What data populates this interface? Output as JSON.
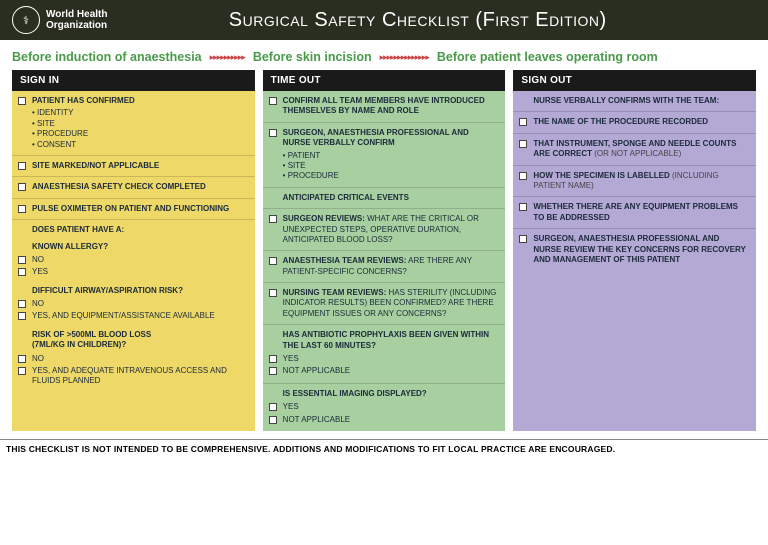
{
  "header": {
    "org_line1": "World Health",
    "org_line2": "Organization",
    "title": "Surgical Safety Checklist (First Edition)"
  },
  "phases": {
    "p1": "Before induction of anaesthesia",
    "p2": "Before skin incision",
    "p3": "Before patient leaves operating room",
    "arrows1": "▸▸▸▸▸▸▸▸▸▸",
    "arrows2": "▸▸▸▸▸▸▸▸▸▸▸▸▸▸"
  },
  "col1": {
    "header": "SIGN IN",
    "i1": {
      "title": "PATIENT HAS CONFIRMED",
      "b1": "IDENTITY",
      "b2": "SITE",
      "b3": "PROCEDURE",
      "b4": "CONSENT"
    },
    "i2": "SITE MARKED/NOT APPLICABLE",
    "i3": "ANAESTHESIA SAFETY CHECK COMPLETED",
    "i4": "PULSE OXIMETER ON PATIENT AND FUNCTIONING",
    "q_header": "DOES PATIENT HAVE A:",
    "q1": {
      "title": "KNOWN ALLERGY?",
      "o1": "NO",
      "o2": "YES"
    },
    "q2": {
      "title": "DIFFICULT AIRWAY/ASPIRATION RISK?",
      "o1": "NO",
      "o2": "YES, AND EQUIPMENT/ASSISTANCE AVAILABLE"
    },
    "q3": {
      "title": "RISK OF >500ML BLOOD LOSS",
      "sub": "(7ML/KG IN CHILDREN)?",
      "o1": "NO",
      "o2": "YES, AND ADEQUATE INTRAVENOUS ACCESS AND FLUIDS PLANNED"
    }
  },
  "col2": {
    "header": "TIME OUT",
    "i1": "CONFIRM ALL TEAM MEMBERS HAVE INTRODUCED THEMSELVES BY NAME AND ROLE",
    "i2": {
      "title": "SURGEON, ANAESTHESIA PROFESSIONAL AND NURSE VERBALLY CONFIRM",
      "b1": "PATIENT",
      "b2": "SITE",
      "b3": "PROCEDURE"
    },
    "i3": "ANTICIPATED CRITICAL EVENTS",
    "i4": {
      "bold": "SURGEON REVIEWS:",
      "rest": " WHAT ARE THE CRITICAL OR UNEXPECTED STEPS, OPERATIVE DURATION, ANTICIPATED BLOOD LOSS?"
    },
    "i5": {
      "bold": "ANAESTHESIA TEAM REVIEWS:",
      "rest": " ARE THERE ANY PATIENT-SPECIFIC CONCERNS?"
    },
    "i6": {
      "bold": "NURSING TEAM REVIEWS:",
      "rest": " HAS STERILITY (INCLUDING INDICATOR RESULTS) BEEN CONFIRMED? ARE THERE EQUIPMENT ISSUES OR ANY CONCERNS?"
    },
    "i7": {
      "title": "HAS ANTIBIOTIC PROPHYLAXIS BEEN GIVEN WITHIN THE LAST 60 MINUTES?",
      "o1": "YES",
      "o2": "NOT APPLICABLE"
    },
    "i8": {
      "title": "IS ESSENTIAL IMAGING DISPLAYED?",
      "o1": "YES",
      "o2": "NOT APPLICABLE"
    }
  },
  "col3": {
    "header": "SIGN OUT",
    "i1": "NURSE VERBALLY CONFIRMS WITH THE TEAM:",
    "i2": "THE NAME OF THE PROCEDURE RECORDED",
    "i3": {
      "bold": "THAT INSTRUMENT, SPONGE AND NEEDLE COUNTS ARE CORRECT",
      "note": " (OR NOT APPLICABLE)"
    },
    "i4": {
      "bold": "HOW THE SPECIMEN IS LABELLED",
      "note": " (INCLUDING PATIENT NAME)"
    },
    "i5": "WHETHER THERE ARE ANY EQUIPMENT PROBLEMS TO BE ADDRESSED",
    "i6": "SURGEON, ANAESTHESIA PROFESSIONAL AND NURSE REVIEW THE KEY CONCERNS FOR RECOVERY AND MANAGEMENT OF THIS PATIENT"
  },
  "footer": "THIS CHECKLIST IS NOT INTENDED TO BE COMPREHENSIVE. ADDITIONS AND MODIFICATIONS TO FIT LOCAL PRACTICE ARE ENCOURAGED."
}
